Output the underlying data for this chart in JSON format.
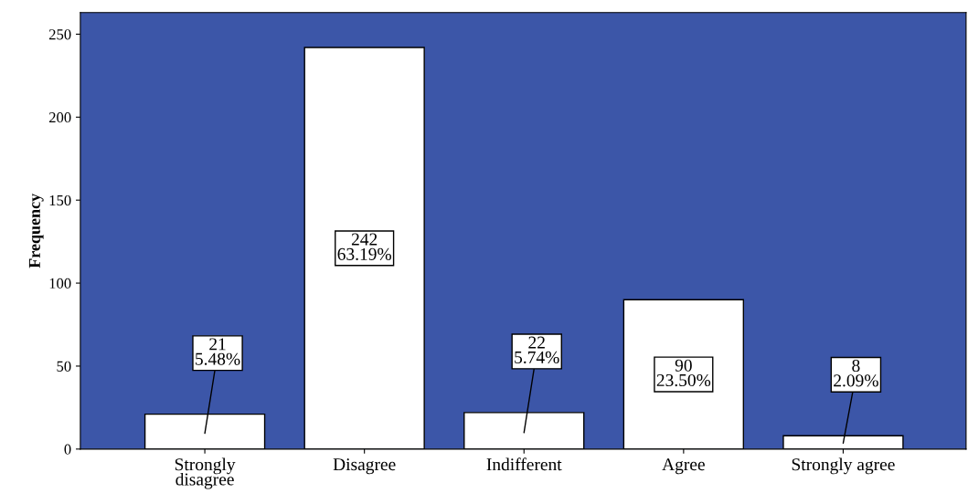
{
  "chart_data": {
    "type": "bar",
    "ylabel": "Frequency",
    "categories": [
      "Strongly\ndisagree",
      "Disagree",
      "Indifferent",
      "Agree",
      "Strongly agree"
    ],
    "values": [
      21,
      242,
      22,
      90,
      8
    ],
    "value_labels": [
      "21\n5.48%",
      "242\n63.19%",
      "22\n5.74%",
      "90\n23.50%",
      "8\n2.09%"
    ],
    "color": "#ffffff",
    "ylim": [
      0,
      263
    ],
    "yticks": [
      0,
      50,
      100,
      150,
      200,
      250
    ],
    "grid": false
  }
}
